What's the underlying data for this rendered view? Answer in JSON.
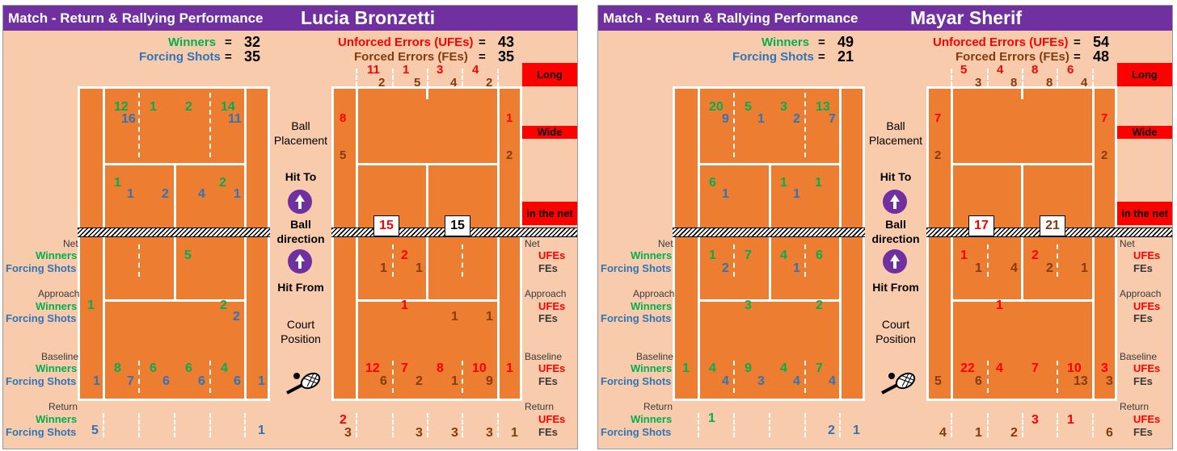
{
  "colors": {
    "header": "#7030a0",
    "background": "#f8cbad",
    "court": "#ed7d31",
    "winners": "#00b050",
    "forcing": "#2e75b6",
    "ufe": "#ff0000",
    "fe": "#843c0c"
  },
  "labels": {
    "header_left": "Match - Return & Rallying Performance",
    "winners": "Winners",
    "forcing_shots": "Forcing Shots",
    "unforced_errors": "Unforced Errors (UFEs)",
    "forced_errors": "Forced Errors (FEs)",
    "long": "Long",
    "wide": "Wide",
    "in_the_net": "in the net",
    "ball_placement_1": "Ball",
    "ball_placement_2": "Placement",
    "hit_to": "Hit To",
    "ball_dir_1": "Ball",
    "ball_dir_2": "direction",
    "hit_from": "Hit From",
    "court_pos_1": "Court",
    "court_pos_2": "Position",
    "net": "Net",
    "approach": "Approach",
    "baseline": "Baseline",
    "return": "Return",
    "ufes": "UFEs",
    "fes": "FEs",
    "net_pattern": "XXXXXXXXXXXXXXXXXXXXXXXXXXXXXXXXXXXXXXXXXXXX",
    "equals": "="
  },
  "panels": [
    {
      "player": "Lucia Bronzetti",
      "totals": {
        "winners": "32",
        "forcing": "35",
        "ufes": "43",
        "fes": "35"
      },
      "left": {
        "top": [
          {
            "w": "12",
            "f": "16"
          },
          {
            "w": "1",
            "f": ""
          },
          {
            "w": "2",
            "f": ""
          },
          {
            "w": "14",
            "f": "11"
          }
        ],
        "service": [
          {
            "w": "1",
            "f": "1"
          },
          {
            "w": "",
            "f": "2"
          },
          {
            "w": "",
            "f": "4"
          },
          {
            "w": "2",
            "f": "1"
          }
        ],
        "net_row": [
          "",
          "",
          "5",
          ""
        ],
        "approach": {
          "side_w": "1",
          "r3w": "2",
          "r3f": "2"
        },
        "baseline": {
          "w": [
            "8",
            "6",
            "6",
            "4"
          ],
          "f": [
            "7",
            "6",
            "6",
            "6"
          ],
          "side_l": "1",
          "side_r": "1"
        },
        "ret": {
          "f_l": "5",
          "f_r": "1"
        }
      },
      "right": {
        "long": [
          {
            "u": "11",
            "f": "2"
          },
          {
            "u": "1",
            "f": "5"
          },
          {
            "u": "3",
            "f": "4"
          },
          {
            "u": "4",
            "f": "2"
          }
        ],
        "wide": {
          "lu": "8",
          "lf": "5",
          "ru": "1",
          "rf": "2"
        },
        "net_boxes": [
          "15",
          "15"
        ],
        "net_row": {
          "u": [
            "",
            "2",
            "",
            ""
          ],
          "f": [
            "1",
            "1",
            "",
            ""
          ]
        },
        "approach": {
          "u": [
            "",
            "1",
            "",
            ""
          ],
          "f": [
            "",
            "",
            "1",
            "1"
          ]
        },
        "baseline": {
          "u": [
            "12",
            "7",
            "8",
            "10"
          ],
          "f": [
            "6",
            "2",
            "1",
            "9"
          ],
          "side_ru": "1"
        },
        "ret": {
          "u": [
            "2",
            "",
            "",
            "",
            ""
          ],
          "f": [
            "3",
            "3",
            "3",
            "3",
            "1"
          ]
        }
      }
    },
    {
      "player": "Mayar Sherif",
      "totals": {
        "winners": "49",
        "forcing": "21",
        "ufes": "54",
        "fes": "48"
      },
      "left": {
        "top": [
          {
            "w": "20",
            "f": "9"
          },
          {
            "w": "5",
            "f": "1"
          },
          {
            "w": "3",
            "f": "2"
          },
          {
            "w": "13",
            "f": "7"
          }
        ],
        "service": [
          {
            "w": "6",
            "f": "1"
          },
          {
            "w": "",
            "f": ""
          },
          {
            "w": "1",
            "f": "1"
          },
          {
            "w": "1",
            "f": ""
          }
        ],
        "net_row": {
          "w": [
            "1",
            "7",
            "4",
            "6"
          ],
          "f": [
            "2",
            "",
            "1",
            ""
          ]
        },
        "approach": {
          "w": [
            "",
            "3",
            "",
            "2"
          ]
        },
        "baseline": {
          "w": [
            "4",
            "9",
            "4",
            "7"
          ],
          "f": [
            "4",
            "3",
            "4",
            "4"
          ],
          "side_l": "1"
        },
        "ret": {
          "w": "1",
          "f": [
            "2",
            "1"
          ]
        }
      },
      "right": {
        "long": [
          {
            "u": "5",
            "f": "3"
          },
          {
            "u": "4",
            "f": "8"
          },
          {
            "u": "8",
            "f": "8"
          },
          {
            "u": "6",
            "f": "4"
          }
        ],
        "wide": {
          "lu": "7",
          "lf": "2",
          "ru": "7",
          "rf": "2"
        },
        "net_boxes": [
          "17",
          "21"
        ],
        "net_row": {
          "u": [
            "1",
            "",
            "2",
            ""
          ],
          "f": [
            "1",
            "4",
            "2",
            "1"
          ]
        },
        "approach": {
          "u": [
            "1"
          ]
        },
        "baseline": {
          "u": [
            "22",
            "4",
            "7",
            "10"
          ],
          "f": [
            "6",
            "",
            "",
            "13"
          ],
          "side_lf": "5",
          "side_ru": "3",
          "side_rf": "3"
        },
        "ret": {
          "u": [
            "3",
            "1"
          ],
          "f": [
            "4",
            "1",
            "2",
            "6"
          ]
        }
      }
    }
  ]
}
